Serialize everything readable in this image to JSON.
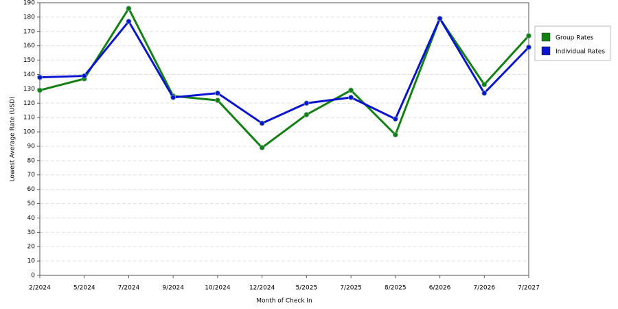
{
  "chart_data": {
    "type": "line",
    "x_label": "Month of Check In",
    "y_label": "Lowest Average Rate (USD)",
    "categories": [
      "2/2024",
      "5/2024",
      "7/2024",
      "9/2024",
      "10/2024",
      "12/2024",
      "5/2025",
      "7/2025",
      "8/2025",
      "6/2026",
      "7/2026",
      "7/2027"
    ],
    "series": [
      {
        "name": "Group Rates",
        "color": "#138013",
        "values": [
          129,
          137,
          186,
          125,
          122,
          89,
          112,
          129,
          98,
          179,
          133,
          167
        ]
      },
      {
        "name": "Individual Rates",
        "color": "#0a14d0",
        "values": [
          138,
          139,
          177,
          124,
          127,
          106,
          120,
          124,
          109,
          179,
          127,
          159
        ]
      }
    ],
    "ylim": [
      0,
      190
    ],
    "yticks": [
      0,
      10,
      20,
      30,
      40,
      50,
      60,
      70,
      80,
      90,
      100,
      110,
      120,
      130,
      140,
      150,
      160,
      170,
      180,
      190
    ],
    "grid": true,
    "legend": "right"
  }
}
